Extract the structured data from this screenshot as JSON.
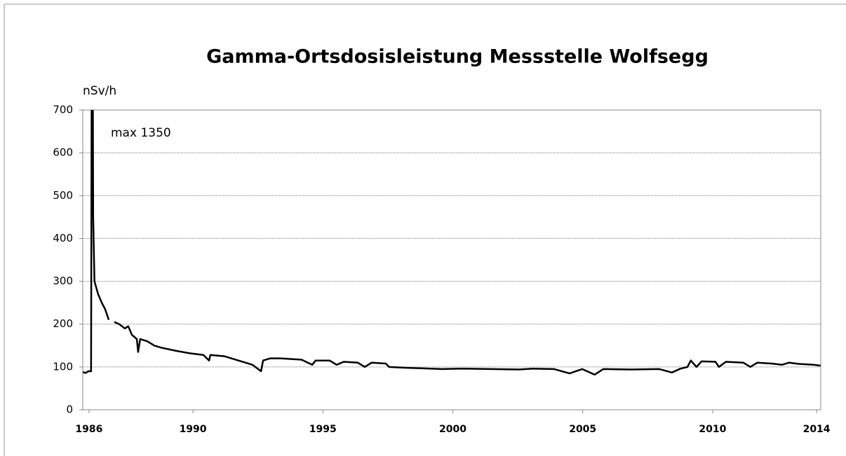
{
  "chart_data": {
    "type": "line",
    "title": "Gamma-Ortsdosisleistung Messstelle Wolfsegg",
    "y_label": "nSv/h",
    "annotation": "max 1350",
    "xlim": [
      1985.76,
      2014.16
    ],
    "xticks": [
      1986,
      1990,
      1995,
      2000,
      2005,
      2010,
      2014
    ],
    "ylim": [
      0,
      700
    ],
    "yticks": [
      0,
      100,
      200,
      300,
      400,
      500,
      600,
      700
    ],
    "grid": true,
    "x": [
      1985.76,
      1985.87,
      1985.98,
      1986.08,
      1986.12,
      1986.16,
      1986.21,
      1986.35,
      1986.49,
      1986.62,
      1986.76,
      1986.85,
      1986.97,
      1987.16,
      1987.38,
      1987.51,
      1987.65,
      1987.84,
      1987.89,
      1987.97,
      1988.24,
      1988.51,
      1988.78,
      1989.32,
      1989.86,
      1990.4,
      1990.62,
      1990.67,
      1991.21,
      1991.75,
      1992.02,
      1992.29,
      1992.62,
      1992.7,
      1992.97,
      1993.37,
      1994.18,
      1994.59,
      1994.72,
      1995.26,
      1995.53,
      1995.8,
      1996.34,
      1996.61,
      1996.88,
      1997.42,
      1997.55,
      1998.23,
      1998.77,
      1999.58,
      2000.39,
      2001.47,
      2002.55,
      2003.09,
      2003.9,
      2004.49,
      2004.98,
      2005.46,
      2005.79,
      2006.87,
      2007.95,
      2008.43,
      2008.76,
      2009.03,
      2009.16,
      2009.38,
      2009.57,
      2010.11,
      2010.24,
      2010.51,
      2011.18,
      2011.45,
      2011.72,
      2012.26,
      2012.67,
      2012.94,
      2013.34,
      2013.88,
      2014.15
    ],
    "series": [
      {
        "color": "#000000",
        "values": [
          88,
          86,
          90,
          90,
          1350,
          450,
          300,
          270,
          250,
          235,
          210,
          null,
          205,
          200,
          190,
          195,
          175,
          165,
          135,
          165,
          160,
          150,
          145,
          138,
          132,
          128,
          115,
          128,
          125,
          115,
          110,
          105,
          90,
          115,
          120,
          120,
          117,
          105,
          115,
          115,
          105,
          112,
          110,
          100,
          110,
          108,
          100,
          98,
          97,
          95,
          96,
          95,
          94,
          96,
          95,
          85,
          95,
          82,
          95,
          94,
          95,
          87,
          96,
          100,
          115,
          100,
          113,
          112,
          100,
          112,
          110,
          100,
          110,
          108,
          105,
          110,
          107,
          105,
          103
        ]
      }
    ]
  }
}
